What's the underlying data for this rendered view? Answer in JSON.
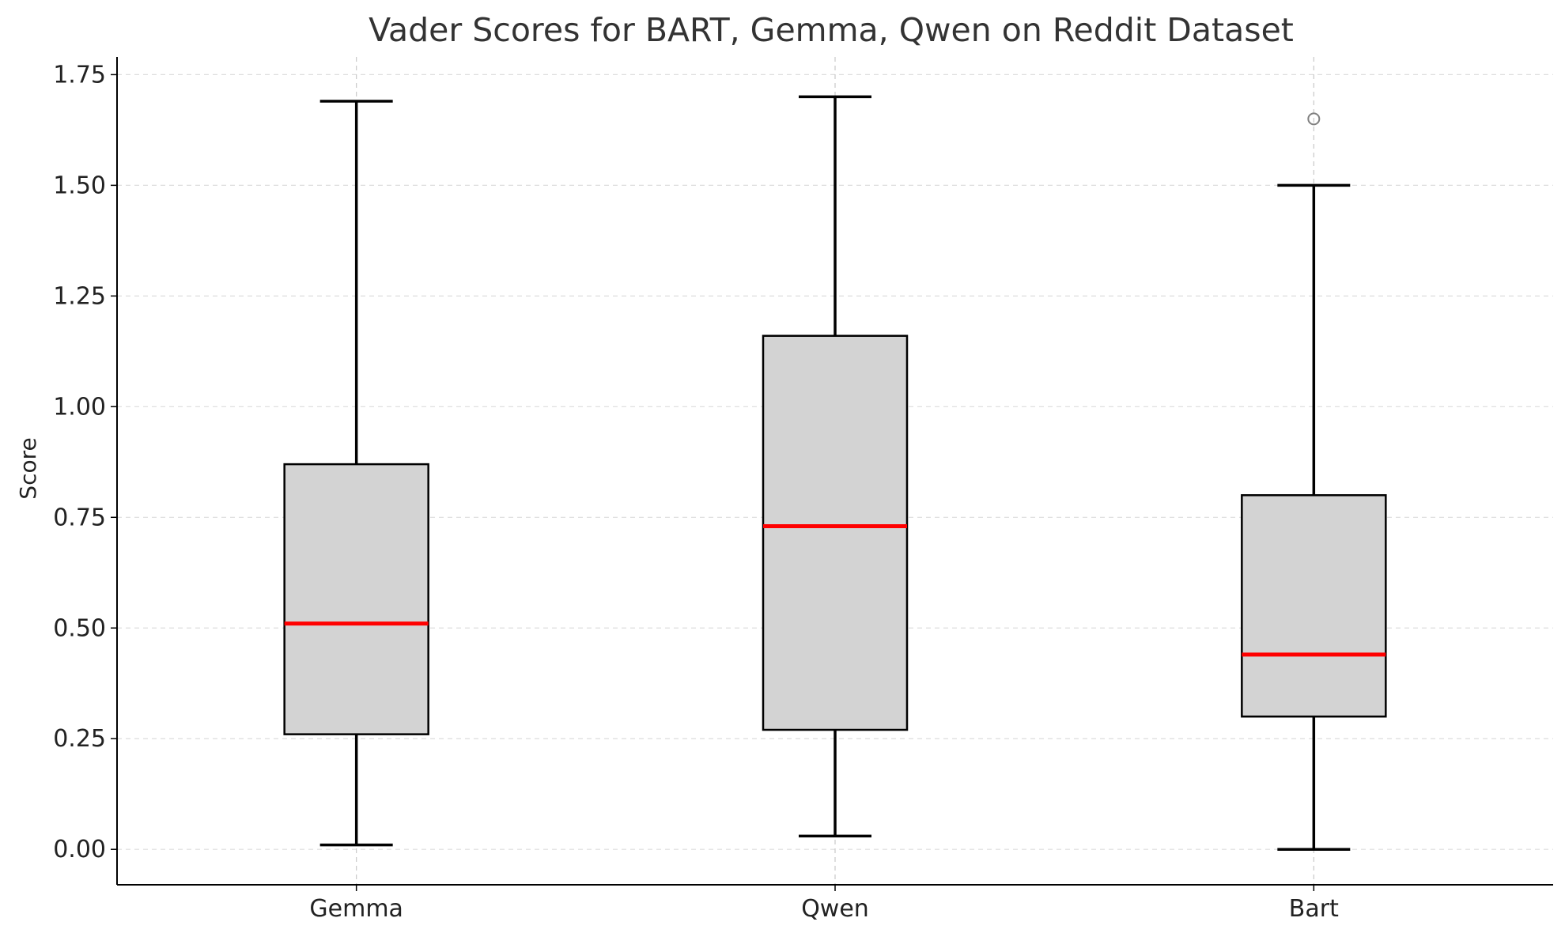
{
  "chart_data": {
    "type": "box",
    "title": "Vader Scores for BART, Gemma, Qwen on Reddit Dataset",
    "xlabel": "",
    "ylabel": "Score",
    "categories": [
      "Gemma",
      "Qwen",
      "Bart"
    ],
    "boxes": [
      {
        "category": "Gemma",
        "whisker_low": 0.01,
        "q1": 0.26,
        "median": 0.51,
        "q3": 0.87,
        "whisker_high": 1.69,
        "outliers": []
      },
      {
        "category": "Qwen",
        "whisker_low": 0.03,
        "q1": 0.27,
        "median": 0.73,
        "q3": 1.16,
        "whisker_high": 1.7,
        "outliers": []
      },
      {
        "category": "Bart",
        "whisker_low": 0.0,
        "q1": 0.3,
        "median": 0.44,
        "q3": 0.8,
        "whisker_high": 1.5,
        "outliers": [
          1.65
        ]
      }
    ],
    "ylim": [
      -0.08,
      1.79
    ],
    "yticks": [
      0.0,
      0.25,
      0.5,
      0.75,
      1.0,
      1.25,
      1.5,
      1.75
    ],
    "ytick_labels": [
      "0.00",
      "0.25",
      "0.50",
      "0.75",
      "1.00",
      "1.25",
      "1.50",
      "1.75"
    ],
    "grid": true,
    "colors": {
      "box_fill": "#d3d3d3",
      "box_edge": "#000000",
      "median": "#ff0000",
      "whisker": "#000000",
      "outlier": "#808080",
      "grid": "#dddddd",
      "title": "#333333"
    }
  }
}
